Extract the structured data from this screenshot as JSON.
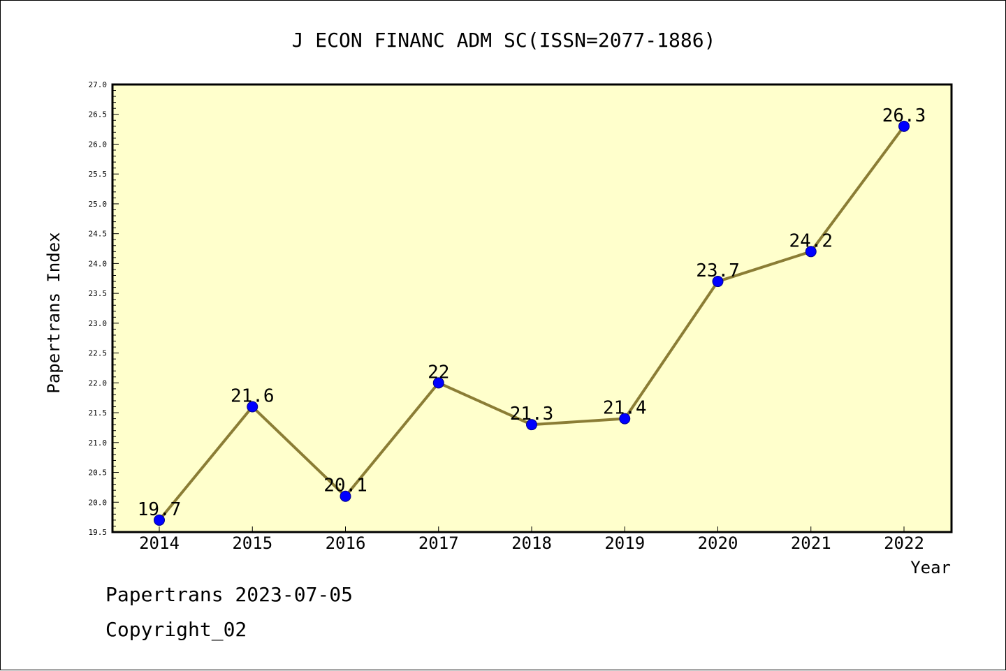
{
  "chart_data": {
    "type": "line",
    "title": "J ECON FINANC ADM SC(ISSN=2077-1886)",
    "xlabel": "Year",
    "ylabel": "Papertrans Index",
    "categories": [
      "2014",
      "2015",
      "2016",
      "2017",
      "2018",
      "2019",
      "2020",
      "2021",
      "2022"
    ],
    "series": [
      {
        "values": [
          19.7,
          21.6,
          20.1,
          22,
          21.3,
          21.4,
          23.7,
          24.2,
          26.3
        ],
        "labels": [
          "19.7",
          "21.6",
          "20.1",
          "22",
          "21.3",
          "21.4",
          "23.7",
          "24.2",
          "26.3"
        ]
      }
    ],
    "ylim": [
      19.5,
      27.0
    ],
    "yticks": [
      "19.5",
      "20.0",
      "20.5",
      "21.0",
      "21.5",
      "22.0",
      "22.5",
      "23.0",
      "23.5",
      "24.0",
      "24.5",
      "25.0",
      "25.5",
      "26.0",
      "26.5",
      "27.0"
    ],
    "grid": false,
    "colors": {
      "plot_background": "#ffffcc",
      "line": "#8b7d35",
      "marker": "#0000ff"
    }
  },
  "footer": {
    "line1": "Papertrans 2023-07-05",
    "line2": "Copyright_02"
  }
}
